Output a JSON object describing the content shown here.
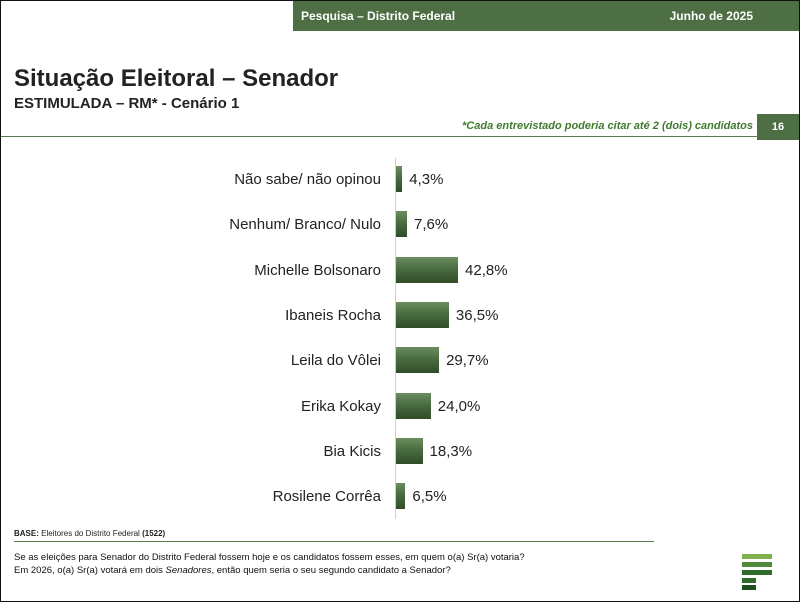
{
  "header": {
    "survey": "Pesquisa – Distrito Federal",
    "date": "Junho de 2025"
  },
  "title": "Situação Eleitoral – Senador",
  "subtitle": "ESTIMULADA – RM* - Cenário 1",
  "note": "*Cada entrevistado poderia citar até 2 (dois) candidatos",
  "page_number": "16",
  "colors": {
    "brand_green": "#4e6f44",
    "note_green": "#3f7a2f",
    "bar_dark": "#2f4d28"
  },
  "chart_data": {
    "type": "bar",
    "orientation": "horizontal",
    "categories": [
      "Não sabe/ não opinou",
      "Nenhum/ Branco/ Nulo",
      "Michelle Bolsonaro",
      "Ibaneis Rocha",
      "Leila do Vôlei",
      "Erika Kokay",
      "Bia Kicis",
      "Rosilene Corrêa"
    ],
    "values": [
      4.3,
      7.6,
      42.8,
      36.5,
      29.7,
      24.0,
      18.3,
      6.5
    ],
    "value_labels": [
      "4,3%",
      "7,6%",
      "42,8%",
      "36,5%",
      "29,7%",
      "24,0%",
      "18,3%",
      "6,5%"
    ],
    "title": "",
    "xlabel": "",
    "ylabel": "",
    "grid": false,
    "legend": "none"
  },
  "base": {
    "label": "BASE:",
    "text": "Eleitores do Distrito Federal",
    "n": "(1522)"
  },
  "question": {
    "line1": "Se as eleições para Senador do Distrito Federal fossem hoje e os candidatos fossem esses, em quem o(a) Sr(a) votaria?",
    "line2_pre": "Em 2026, o(a) Sr(a) votará em dois ",
    "line2_italic": "Senadores",
    "line2_post": ", então quem seria o seu segundo candidato a Senador?"
  }
}
